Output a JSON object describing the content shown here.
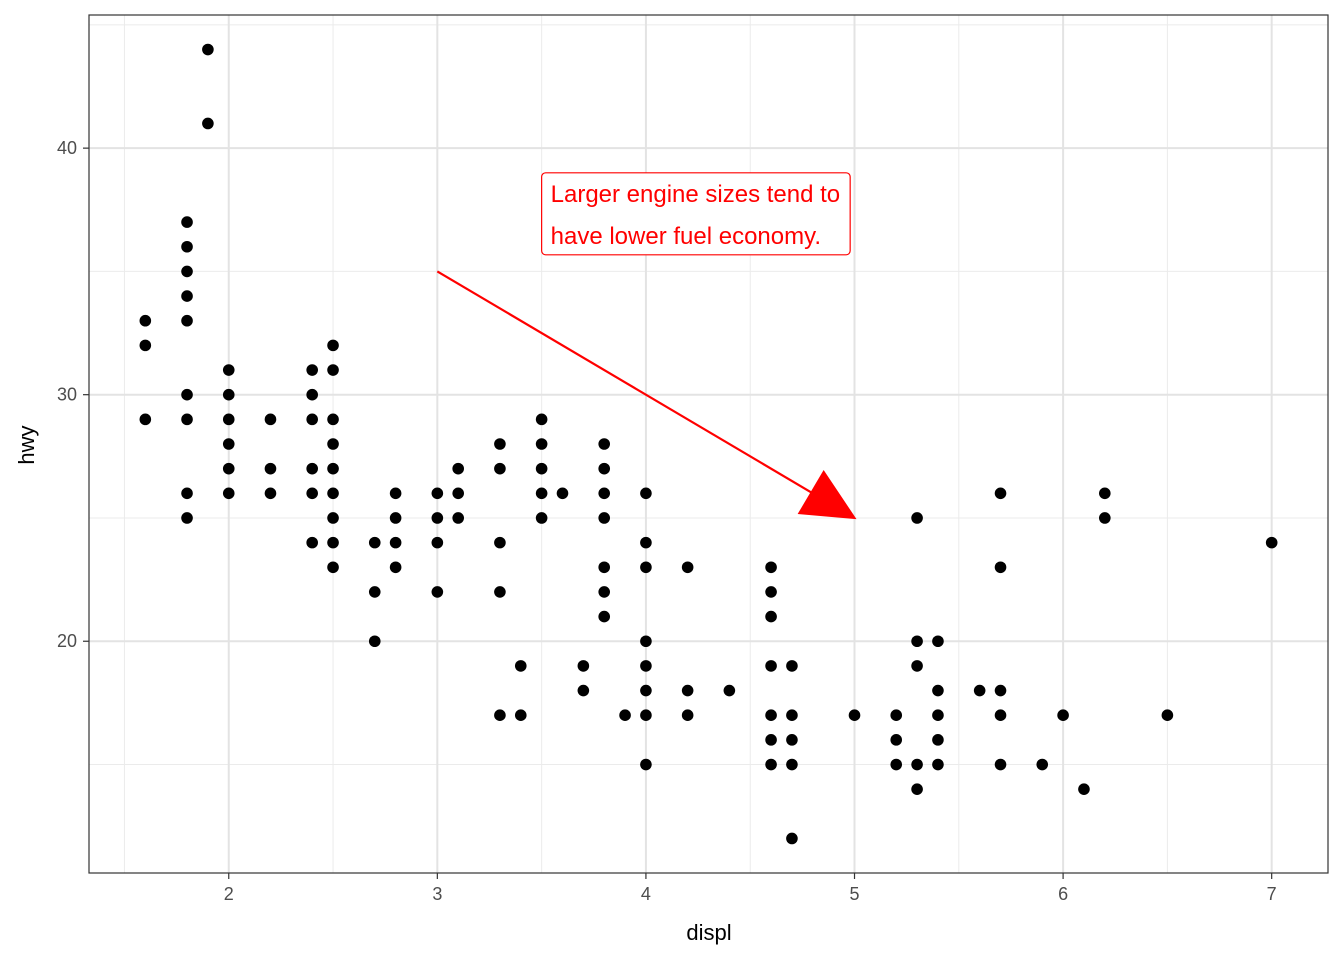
{
  "chart_data": {
    "type": "scatter",
    "xlabel": "displ",
    "ylabel": "hwy",
    "xlim": [
      1.33,
      7.27
    ],
    "ylim": [
      10.6,
      45.4
    ],
    "x_ticks": [
      2,
      3,
      4,
      5,
      6,
      7
    ],
    "x_tick_labels": [
      "2",
      "3",
      "4",
      "5",
      "6",
      "7"
    ],
    "y_ticks": [
      20,
      30,
      40
    ],
    "y_tick_labels": [
      "20",
      "30",
      "40"
    ],
    "grid": true,
    "point_color": "#000000",
    "points": [
      [
        1.6,
        33
      ],
      [
        1.6,
        32
      ],
      [
        1.6,
        29
      ],
      [
        1.8,
        37
      ],
      [
        1.8,
        36
      ],
      [
        1.8,
        35
      ],
      [
        1.8,
        34
      ],
      [
        1.8,
        33
      ],
      [
        1.8,
        30
      ],
      [
        1.8,
        29
      ],
      [
        1.8,
        26
      ],
      [
        1.8,
        25
      ],
      [
        1.9,
        44
      ],
      [
        1.9,
        41
      ],
      [
        2.0,
        31
      ],
      [
        2.0,
        30
      ],
      [
        2.0,
        29
      ],
      [
        2.0,
        28
      ],
      [
        2.0,
        27
      ],
      [
        2.0,
        26
      ],
      [
        2.2,
        29
      ],
      [
        2.2,
        27
      ],
      [
        2.2,
        26
      ],
      [
        2.4,
        31
      ],
      [
        2.4,
        30
      ],
      [
        2.4,
        29
      ],
      [
        2.4,
        27
      ],
      [
        2.4,
        26
      ],
      [
        2.4,
        24
      ],
      [
        2.5,
        32
      ],
      [
        2.5,
        31
      ],
      [
        2.5,
        29
      ],
      [
        2.5,
        28
      ],
      [
        2.5,
        27
      ],
      [
        2.5,
        26
      ],
      [
        2.5,
        25
      ],
      [
        2.5,
        24
      ],
      [
        2.5,
        23
      ],
      [
        2.7,
        24
      ],
      [
        2.7,
        22
      ],
      [
        2.7,
        20
      ],
      [
        2.8,
        26
      ],
      [
        2.8,
        25
      ],
      [
        2.8,
        24
      ],
      [
        2.8,
        23
      ],
      [
        3.0,
        26
      ],
      [
        3.0,
        25
      ],
      [
        3.0,
        24
      ],
      [
        3.0,
        22
      ],
      [
        3.1,
        27
      ],
      [
        3.1,
        26
      ],
      [
        3.1,
        25
      ],
      [
        3.3,
        28
      ],
      [
        3.3,
        27
      ],
      [
        3.3,
        24
      ],
      [
        3.3,
        22
      ],
      [
        3.3,
        17
      ],
      [
        3.4,
        19
      ],
      [
        3.4,
        17
      ],
      [
        3.5,
        29
      ],
      [
        3.5,
        28
      ],
      [
        3.5,
        27
      ],
      [
        3.5,
        26
      ],
      [
        3.5,
        25
      ],
      [
        3.6,
        26
      ],
      [
        3.7,
        19
      ],
      [
        3.7,
        18
      ],
      [
        3.8,
        28
      ],
      [
        3.8,
        27
      ],
      [
        3.8,
        26
      ],
      [
        3.8,
        25
      ],
      [
        3.8,
        23
      ],
      [
        3.8,
        22
      ],
      [
        3.8,
        21
      ],
      [
        3.9,
        17
      ],
      [
        4.0,
        26
      ],
      [
        4.0,
        24
      ],
      [
        4.0,
        23
      ],
      [
        4.0,
        20
      ],
      [
        4.0,
        19
      ],
      [
        4.0,
        18
      ],
      [
        4.0,
        17
      ],
      [
        4.0,
        15
      ],
      [
        4.2,
        23
      ],
      [
        4.2,
        18
      ],
      [
        4.2,
        17
      ],
      [
        4.4,
        18
      ],
      [
        4.6,
        23
      ],
      [
        4.6,
        22
      ],
      [
        4.6,
        21
      ],
      [
        4.6,
        19
      ],
      [
        4.6,
        17
      ],
      [
        4.6,
        16
      ],
      [
        4.6,
        15
      ],
      [
        4.7,
        19
      ],
      [
        4.7,
        17
      ],
      [
        4.7,
        16
      ],
      [
        4.7,
        15
      ],
      [
        4.7,
        12
      ],
      [
        5.0,
        17
      ],
      [
        5.2,
        17
      ],
      [
        5.2,
        16
      ],
      [
        5.2,
        15
      ],
      [
        5.3,
        25
      ],
      [
        5.3,
        20
      ],
      [
        5.3,
        19
      ],
      [
        5.3,
        15
      ],
      [
        5.3,
        14
      ],
      [
        5.4,
        20
      ],
      [
        5.4,
        18
      ],
      [
        5.4,
        17
      ],
      [
        5.4,
        16
      ],
      [
        5.4,
        15
      ],
      [
        5.6,
        18
      ],
      [
        5.7,
        26
      ],
      [
        5.7,
        23
      ],
      [
        5.7,
        18
      ],
      [
        5.7,
        17
      ],
      [
        5.7,
        15
      ],
      [
        5.9,
        15
      ],
      [
        6.0,
        17
      ],
      [
        6.1,
        14
      ],
      [
        6.2,
        26
      ],
      [
        6.2,
        25
      ],
      [
        6.5,
        17
      ],
      [
        7.0,
        24
      ]
    ],
    "annotation": {
      "lines": [
        "Larger engine sizes tend to",
        "have lower fuel economy."
      ],
      "x": 3.5,
      "y": 39,
      "color": "#ff0000"
    },
    "arrow": {
      "from": [
        3,
        35
      ],
      "to": [
        5,
        25
      ],
      "color": "#ff0000"
    }
  }
}
